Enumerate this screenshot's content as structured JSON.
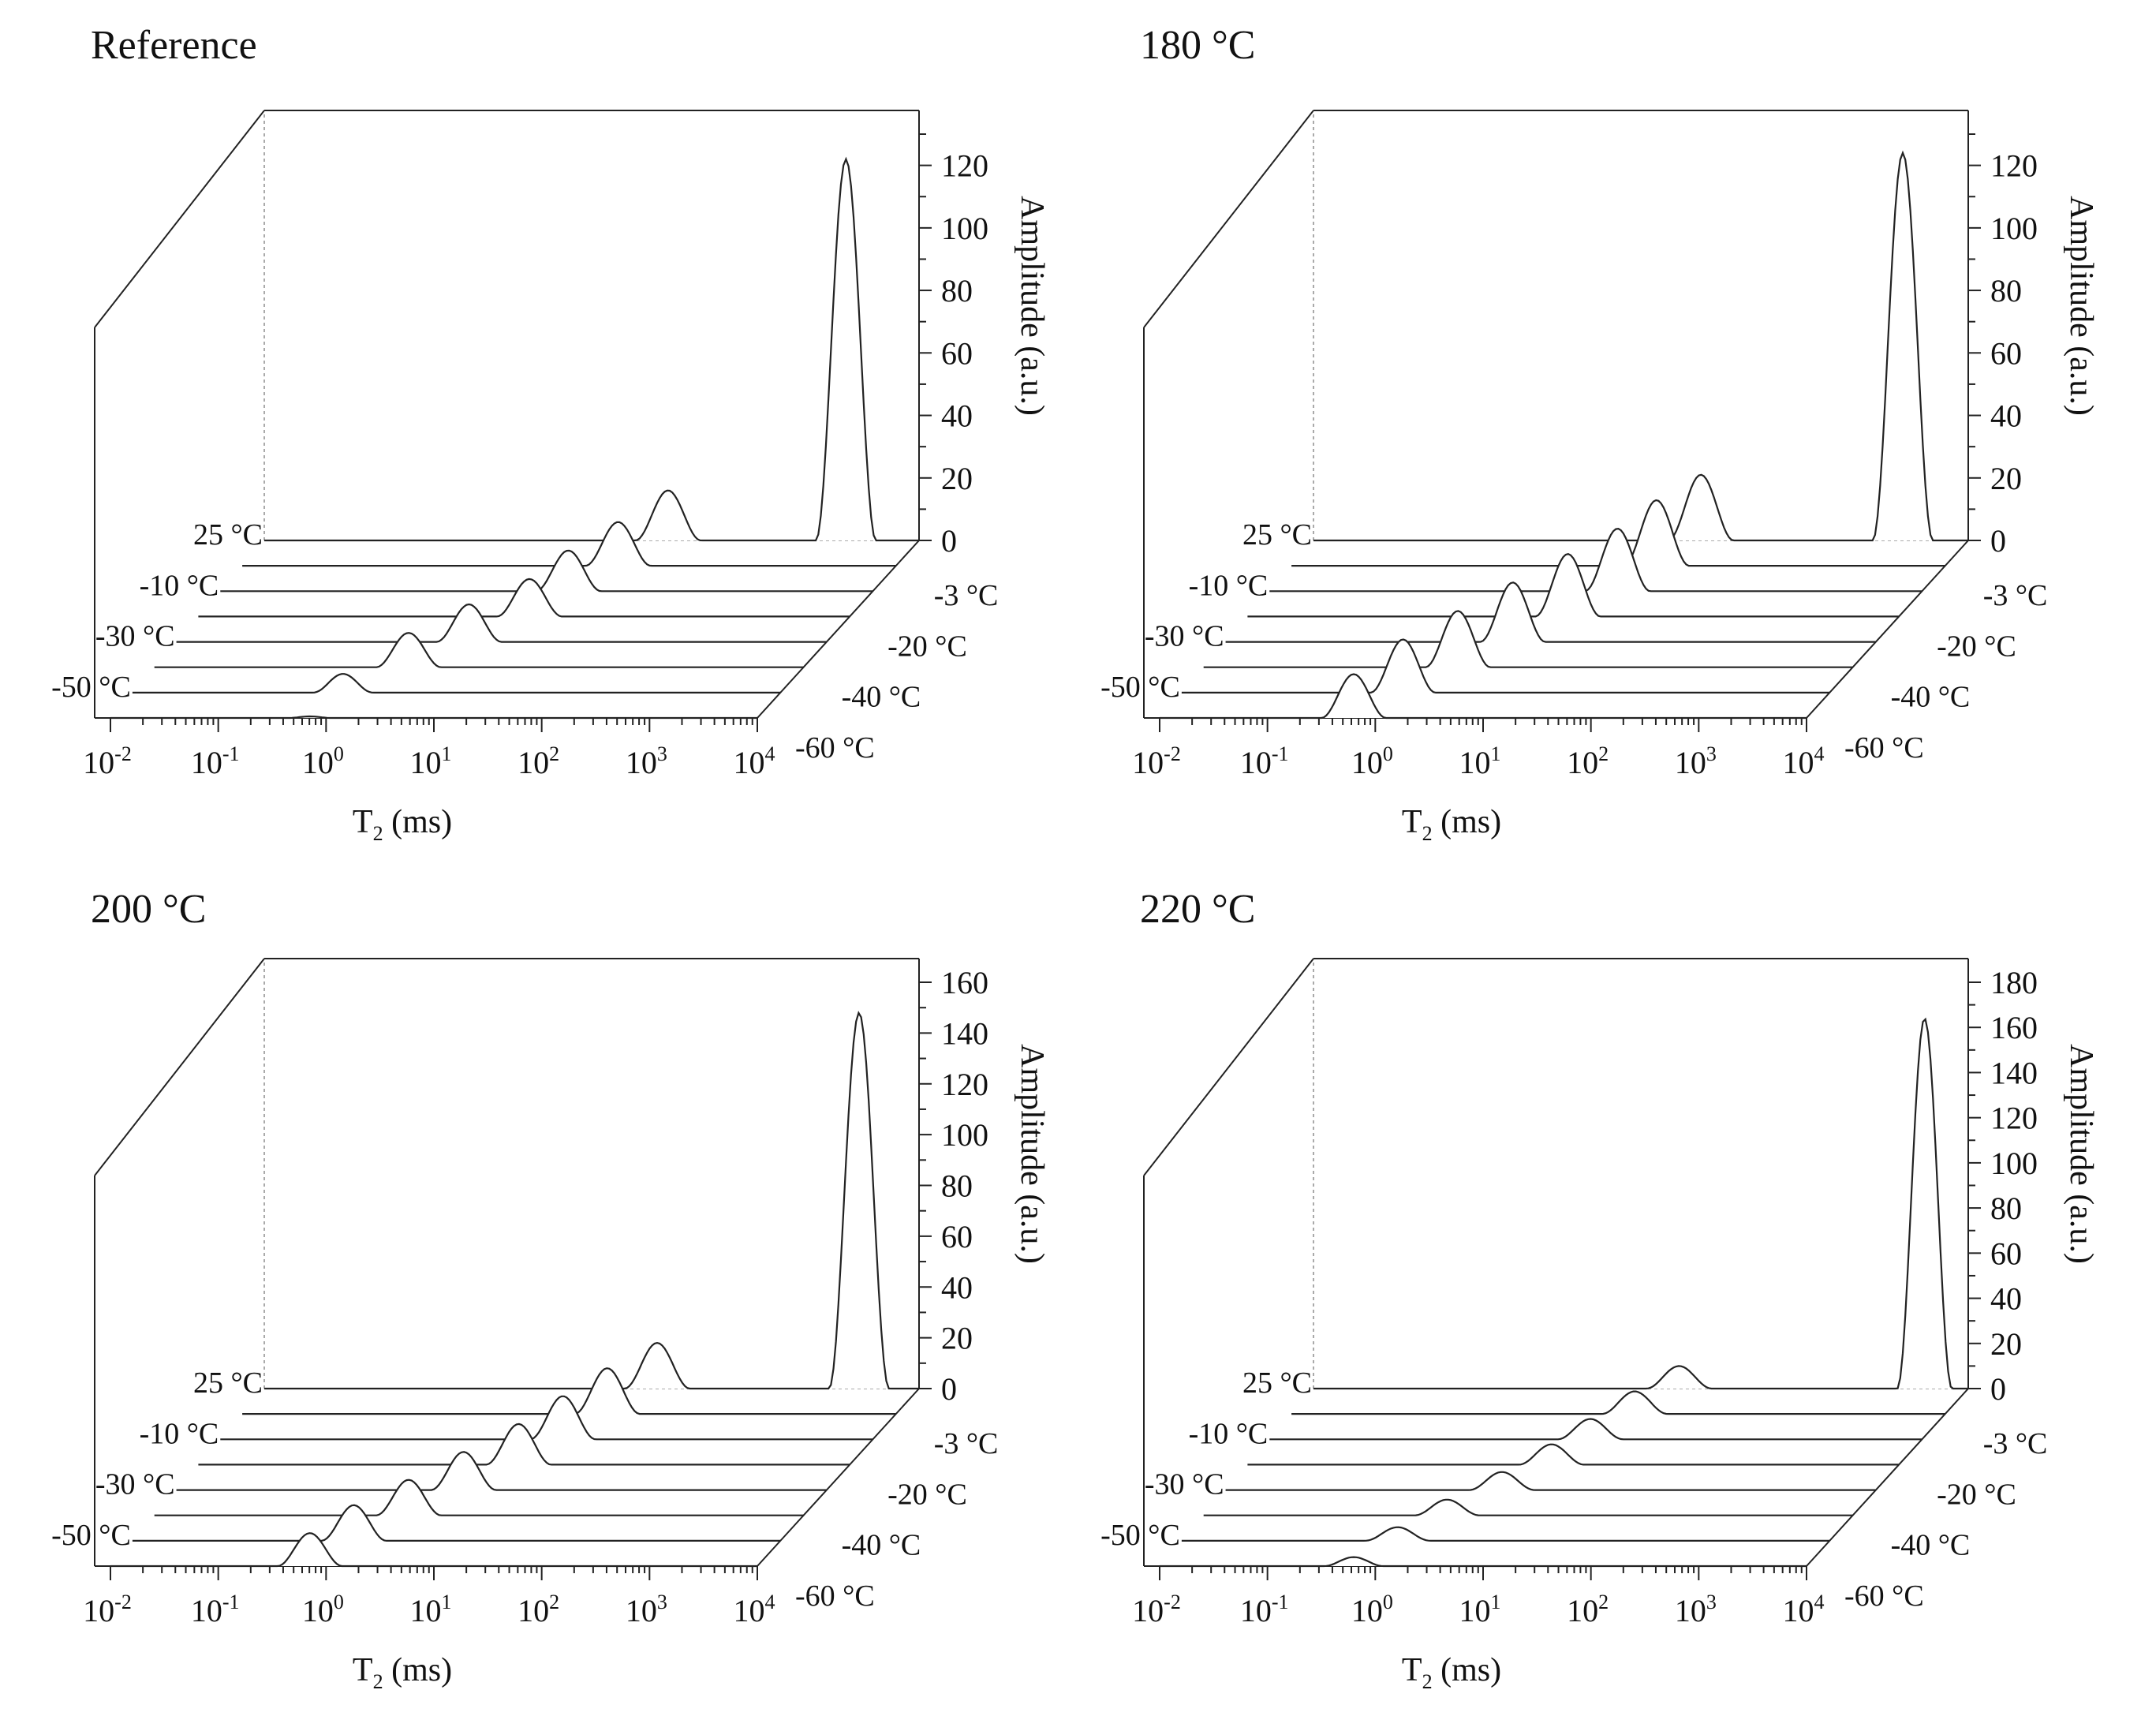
{
  "figure": {
    "panels": [
      {
        "title": "Reference"
      },
      {
        "title": "180 °C"
      },
      {
        "title": "200 °C"
      },
      {
        "title": "220 °C"
      }
    ]
  },
  "chart_data": [
    {
      "type": "area",
      "title": "Reference",
      "xlabel": "T2 (ms)",
      "zlabel": "Amplitude (a.u.)",
      "x_scale": "log",
      "x_ticks": [
        "10-2",
        "10-1",
        "100",
        "101",
        "102",
        "103",
        "104"
      ],
      "x_tick_labels": [
        {
          "base": "10",
          "exp": "-2"
        },
        {
          "base": "10",
          "exp": "-1"
        },
        {
          "base": "10",
          "exp": "0"
        },
        {
          "base": "10",
          "exp": "1"
        },
        {
          "base": "10",
          "exp": "2"
        },
        {
          "base": "10",
          "exp": "3"
        },
        {
          "base": "10",
          "exp": "4"
        }
      ],
      "x_range_log10": [
        -2,
        4
      ],
      "z_ticks": [
        0,
        20,
        40,
        60,
        80,
        100,
        120
      ],
      "z_range": [
        0,
        130
      ],
      "left_temperature_labels": [
        "25 °C",
        "-10 °C",
        "-30 °C",
        "-50 °C"
      ],
      "right_temperature_labels": [
        "-3 °C",
        "-20 °C",
        "-40 °C",
        "-60 °C"
      ],
      "temperatures": [
        "25 °C",
        "-3 °C",
        "-10 °C",
        "-20 °C",
        "-30 °C",
        "-40 °C",
        "-50 °C",
        "-60 °C"
      ],
      "series": [
        {
          "name": "25 °C",
          "peaks": [
            {
              "log10_T2": 1.7,
              "amplitude": 16,
              "width_log": 0.6
            },
            {
              "log10_T2": 3.33,
              "amplitude": 122,
              "width_log": 0.55
            }
          ]
        },
        {
          "name": "-3 °C",
          "peaks": [
            {
              "log10_T2": 1.45,
              "amplitude": 14,
              "width_log": 0.6
            }
          ]
        },
        {
          "name": "-10 °C",
          "peaks": [
            {
              "log10_T2": 1.2,
              "amplitude": 13,
              "width_log": 0.6
            }
          ]
        },
        {
          "name": "-20 °C",
          "peaks": [
            {
              "log10_T2": 1.05,
              "amplitude": 12,
              "width_log": 0.6
            }
          ]
        },
        {
          "name": "-30 °C",
          "peaks": [
            {
              "log10_T2": 0.7,
              "amplitude": 12,
              "width_log": 0.6
            }
          ]
        },
        {
          "name": "-40 °C",
          "peaks": [
            {
              "log10_T2": 0.35,
              "amplitude": 11,
              "width_log": 0.6
            }
          ]
        },
        {
          "name": "-50 °C",
          "peaks": [
            {
              "log10_T2": -0.05,
              "amplitude": 6,
              "width_log": 0.55
            }
          ]
        },
        {
          "name": "-60 °C",
          "peaks": [
            {
              "log10_T2": -0.15,
              "amplitude": 0.5,
              "width_log": 0.4
            }
          ]
        }
      ]
    },
    {
      "type": "area",
      "title": "180 °C",
      "xlabel": "T2 (ms)",
      "zlabel": "Amplitude (a.u.)",
      "x_scale": "log",
      "x_ticks": [
        "10-2",
        "10-1",
        "100",
        "101",
        "102",
        "103",
        "104"
      ],
      "x_tick_labels": [
        {
          "base": "10",
          "exp": "-2"
        },
        {
          "base": "10",
          "exp": "-1"
        },
        {
          "base": "10",
          "exp": "0"
        },
        {
          "base": "10",
          "exp": "1"
        },
        {
          "base": "10",
          "exp": "2"
        },
        {
          "base": "10",
          "exp": "3"
        },
        {
          "base": "10",
          "exp": "4"
        }
      ],
      "x_range_log10": [
        -2,
        4
      ],
      "z_ticks": [
        0,
        20,
        40,
        60,
        80,
        100,
        120
      ],
      "z_range": [
        0,
        130
      ],
      "left_temperature_labels": [
        "25 °C",
        "-10 °C",
        "-30 °C",
        "-50 °C"
      ],
      "right_temperature_labels": [
        "-3 °C",
        "-20 °C",
        "-40 °C",
        "-60 °C"
      ],
      "temperatures": [
        "25 °C",
        "-3 °C",
        "-10 °C",
        "-20 °C",
        "-30 °C",
        "-40 °C",
        "-50 °C",
        "-60 °C"
      ],
      "series": [
        {
          "name": "25 °C",
          "peaks": [
            {
              "log10_T2": 1.55,
              "amplitude": 21,
              "width_log": 0.6
            },
            {
              "log10_T2": 3.4,
              "amplitude": 124,
              "width_log": 0.55
            }
          ]
        },
        {
          "name": "-3 °C",
          "peaks": [
            {
              "log10_T2": 1.35,
              "amplitude": 21,
              "width_log": 0.6
            }
          ]
        },
        {
          "name": "-10 °C",
          "peaks": [
            {
              "log10_T2": 1.2,
              "amplitude": 20,
              "width_log": 0.6
            }
          ]
        },
        {
          "name": "-20 °C",
          "peaks": [
            {
              "log10_T2": 0.95,
              "amplitude": 20,
              "width_log": 0.6
            }
          ]
        },
        {
          "name": "-30 °C",
          "peaks": [
            {
              "log10_T2": 0.65,
              "amplitude": 19,
              "width_log": 0.6
            }
          ]
        },
        {
          "name": "-40 °C",
          "peaks": [
            {
              "log10_T2": 0.35,
              "amplitude": 18,
              "width_log": 0.6
            }
          ]
        },
        {
          "name": "-50 °C",
          "peaks": [
            {
              "log10_T2": 0.05,
              "amplitude": 17,
              "width_log": 0.6
            }
          ]
        },
        {
          "name": "-60 °C",
          "peaks": [
            {
              "log10_T2": -0.2,
              "amplitude": 14,
              "width_log": 0.6
            }
          ]
        }
      ]
    },
    {
      "type": "area",
      "title": "200 °C",
      "xlabel": "T2 (ms)",
      "zlabel": "Amplitude (a.u.)",
      "x_scale": "log",
      "x_ticks": [
        "10-2",
        "10-1",
        "100",
        "101",
        "102",
        "103",
        "104"
      ],
      "x_tick_labels": [
        {
          "base": "10",
          "exp": "-2"
        },
        {
          "base": "10",
          "exp": "-1"
        },
        {
          "base": "10",
          "exp": "0"
        },
        {
          "base": "10",
          "exp": "1"
        },
        {
          "base": "10",
          "exp": "2"
        },
        {
          "base": "10",
          "exp": "3"
        },
        {
          "base": "10",
          "exp": "4"
        }
      ],
      "x_range_log10": [
        -2,
        4
      ],
      "z_ticks": [
        0,
        20,
        40,
        60,
        80,
        100,
        120,
        140,
        160
      ],
      "z_range": [
        0,
        160
      ],
      "left_temperature_labels": [
        "25 °C",
        "-10 °C",
        "-30 °C",
        "-50 °C"
      ],
      "right_temperature_labels": [
        "-3 °C",
        "-20 °C",
        "-40 °C",
        "-60 °C"
      ],
      "temperatures": [
        "25 °C",
        "-3 °C",
        "-10 °C",
        "-20 °C",
        "-30 °C",
        "-40 °C",
        "-50 °C",
        "-60 °C"
      ],
      "series": [
        {
          "name": "25 °C",
          "peaks": [
            {
              "log10_T2": 1.6,
              "amplitude": 18,
              "width_log": 0.6
            },
            {
              "log10_T2": 3.45,
              "amplitude": 148,
              "width_log": 0.55
            }
          ]
        },
        {
          "name": "-3 °C",
          "peaks": [
            {
              "log10_T2": 1.35,
              "amplitude": 18,
              "width_log": 0.6
            }
          ]
        },
        {
          "name": "-10 °C",
          "peaks": [
            {
              "log10_T2": 1.15,
              "amplitude": 17,
              "width_log": 0.6
            }
          ]
        },
        {
          "name": "-20 °C",
          "peaks": [
            {
              "log10_T2": 0.95,
              "amplitude": 16,
              "width_log": 0.6
            }
          ]
        },
        {
          "name": "-30 °C",
          "peaks": [
            {
              "log10_T2": 0.65,
              "amplitude": 15,
              "width_log": 0.6
            }
          ]
        },
        {
          "name": "-40 °C",
          "peaks": [
            {
              "log10_T2": 0.35,
              "amplitude": 14,
              "width_log": 0.6
            }
          ]
        },
        {
          "name": "-50 °C",
          "peaks": [
            {
              "log10_T2": 0.05,
              "amplitude": 14,
              "width_log": 0.6
            }
          ]
        },
        {
          "name": "-60 °C",
          "peaks": [
            {
              "log10_T2": -0.15,
              "amplitude": 13,
              "width_log": 0.6
            }
          ]
        }
      ]
    },
    {
      "type": "area",
      "title": "220 °C",
      "xlabel": "T2 (ms)",
      "zlabel": "Amplitude (a.u.)",
      "x_scale": "log",
      "x_ticks": [
        "10-2",
        "10-1",
        "100",
        "101",
        "102",
        "103",
        "104"
      ],
      "x_tick_labels": [
        {
          "base": "10",
          "exp": "-2"
        },
        {
          "base": "10",
          "exp": "-1"
        },
        {
          "base": "10",
          "exp": "0"
        },
        {
          "base": "10",
          "exp": "1"
        },
        {
          "base": "10",
          "exp": "2"
        },
        {
          "base": "10",
          "exp": "3"
        },
        {
          "base": "10",
          "exp": "4"
        }
      ],
      "x_range_log10": [
        -2,
        4
      ],
      "z_ticks": [
        0,
        20,
        40,
        60,
        80,
        100,
        120,
        140,
        160,
        180
      ],
      "z_range": [
        0,
        180
      ],
      "left_temperature_labels": [
        "25 °C",
        "-10 °C",
        "-30 °C",
        "-50 °C"
      ],
      "right_temperature_labels": [
        "-3 °C",
        "-20 °C",
        "-40 °C",
        "-60 °C"
      ],
      "temperatures": [
        "25 °C",
        "-3 °C",
        "-10 °C",
        "-20 °C",
        "-30 °C",
        "-40 °C",
        "-50 °C",
        "-60 °C"
      ],
      "series": [
        {
          "name": "25 °C",
          "peaks": [
            {
              "log10_T2": 1.35,
              "amplitude": 10,
              "width_log": 0.6
            },
            {
              "log10_T2": 3.6,
              "amplitude": 164,
              "width_log": 0.5
            }
          ]
        },
        {
          "name": "-3 °C",
          "peaks": [
            {
              "log10_T2": 1.15,
              "amplitude": 10,
              "width_log": 0.6
            }
          ]
        },
        {
          "name": "-10 °C",
          "peaks": [
            {
              "log10_T2": 0.95,
              "amplitude": 9,
              "width_log": 0.6
            }
          ]
        },
        {
          "name": "-20 °C",
          "peaks": [
            {
              "log10_T2": 0.8,
              "amplitude": 9,
              "width_log": 0.6
            }
          ]
        },
        {
          "name": "-30 °C",
          "peaks": [
            {
              "log10_T2": 0.55,
              "amplitude": 8,
              "width_log": 0.6
            }
          ]
        },
        {
          "name": "-40 °C",
          "peaks": [
            {
              "log10_T2": 0.25,
              "amplitude": 7,
              "width_log": 0.6
            }
          ]
        },
        {
          "name": "-50 °C",
          "peaks": [
            {
              "log10_T2": 0.0,
              "amplitude": 6,
              "width_log": 0.6
            }
          ]
        },
        {
          "name": "-60 °C",
          "peaks": [
            {
              "log10_T2": -0.2,
              "amplitude": 4,
              "width_log": 0.55
            }
          ]
        }
      ]
    }
  ]
}
